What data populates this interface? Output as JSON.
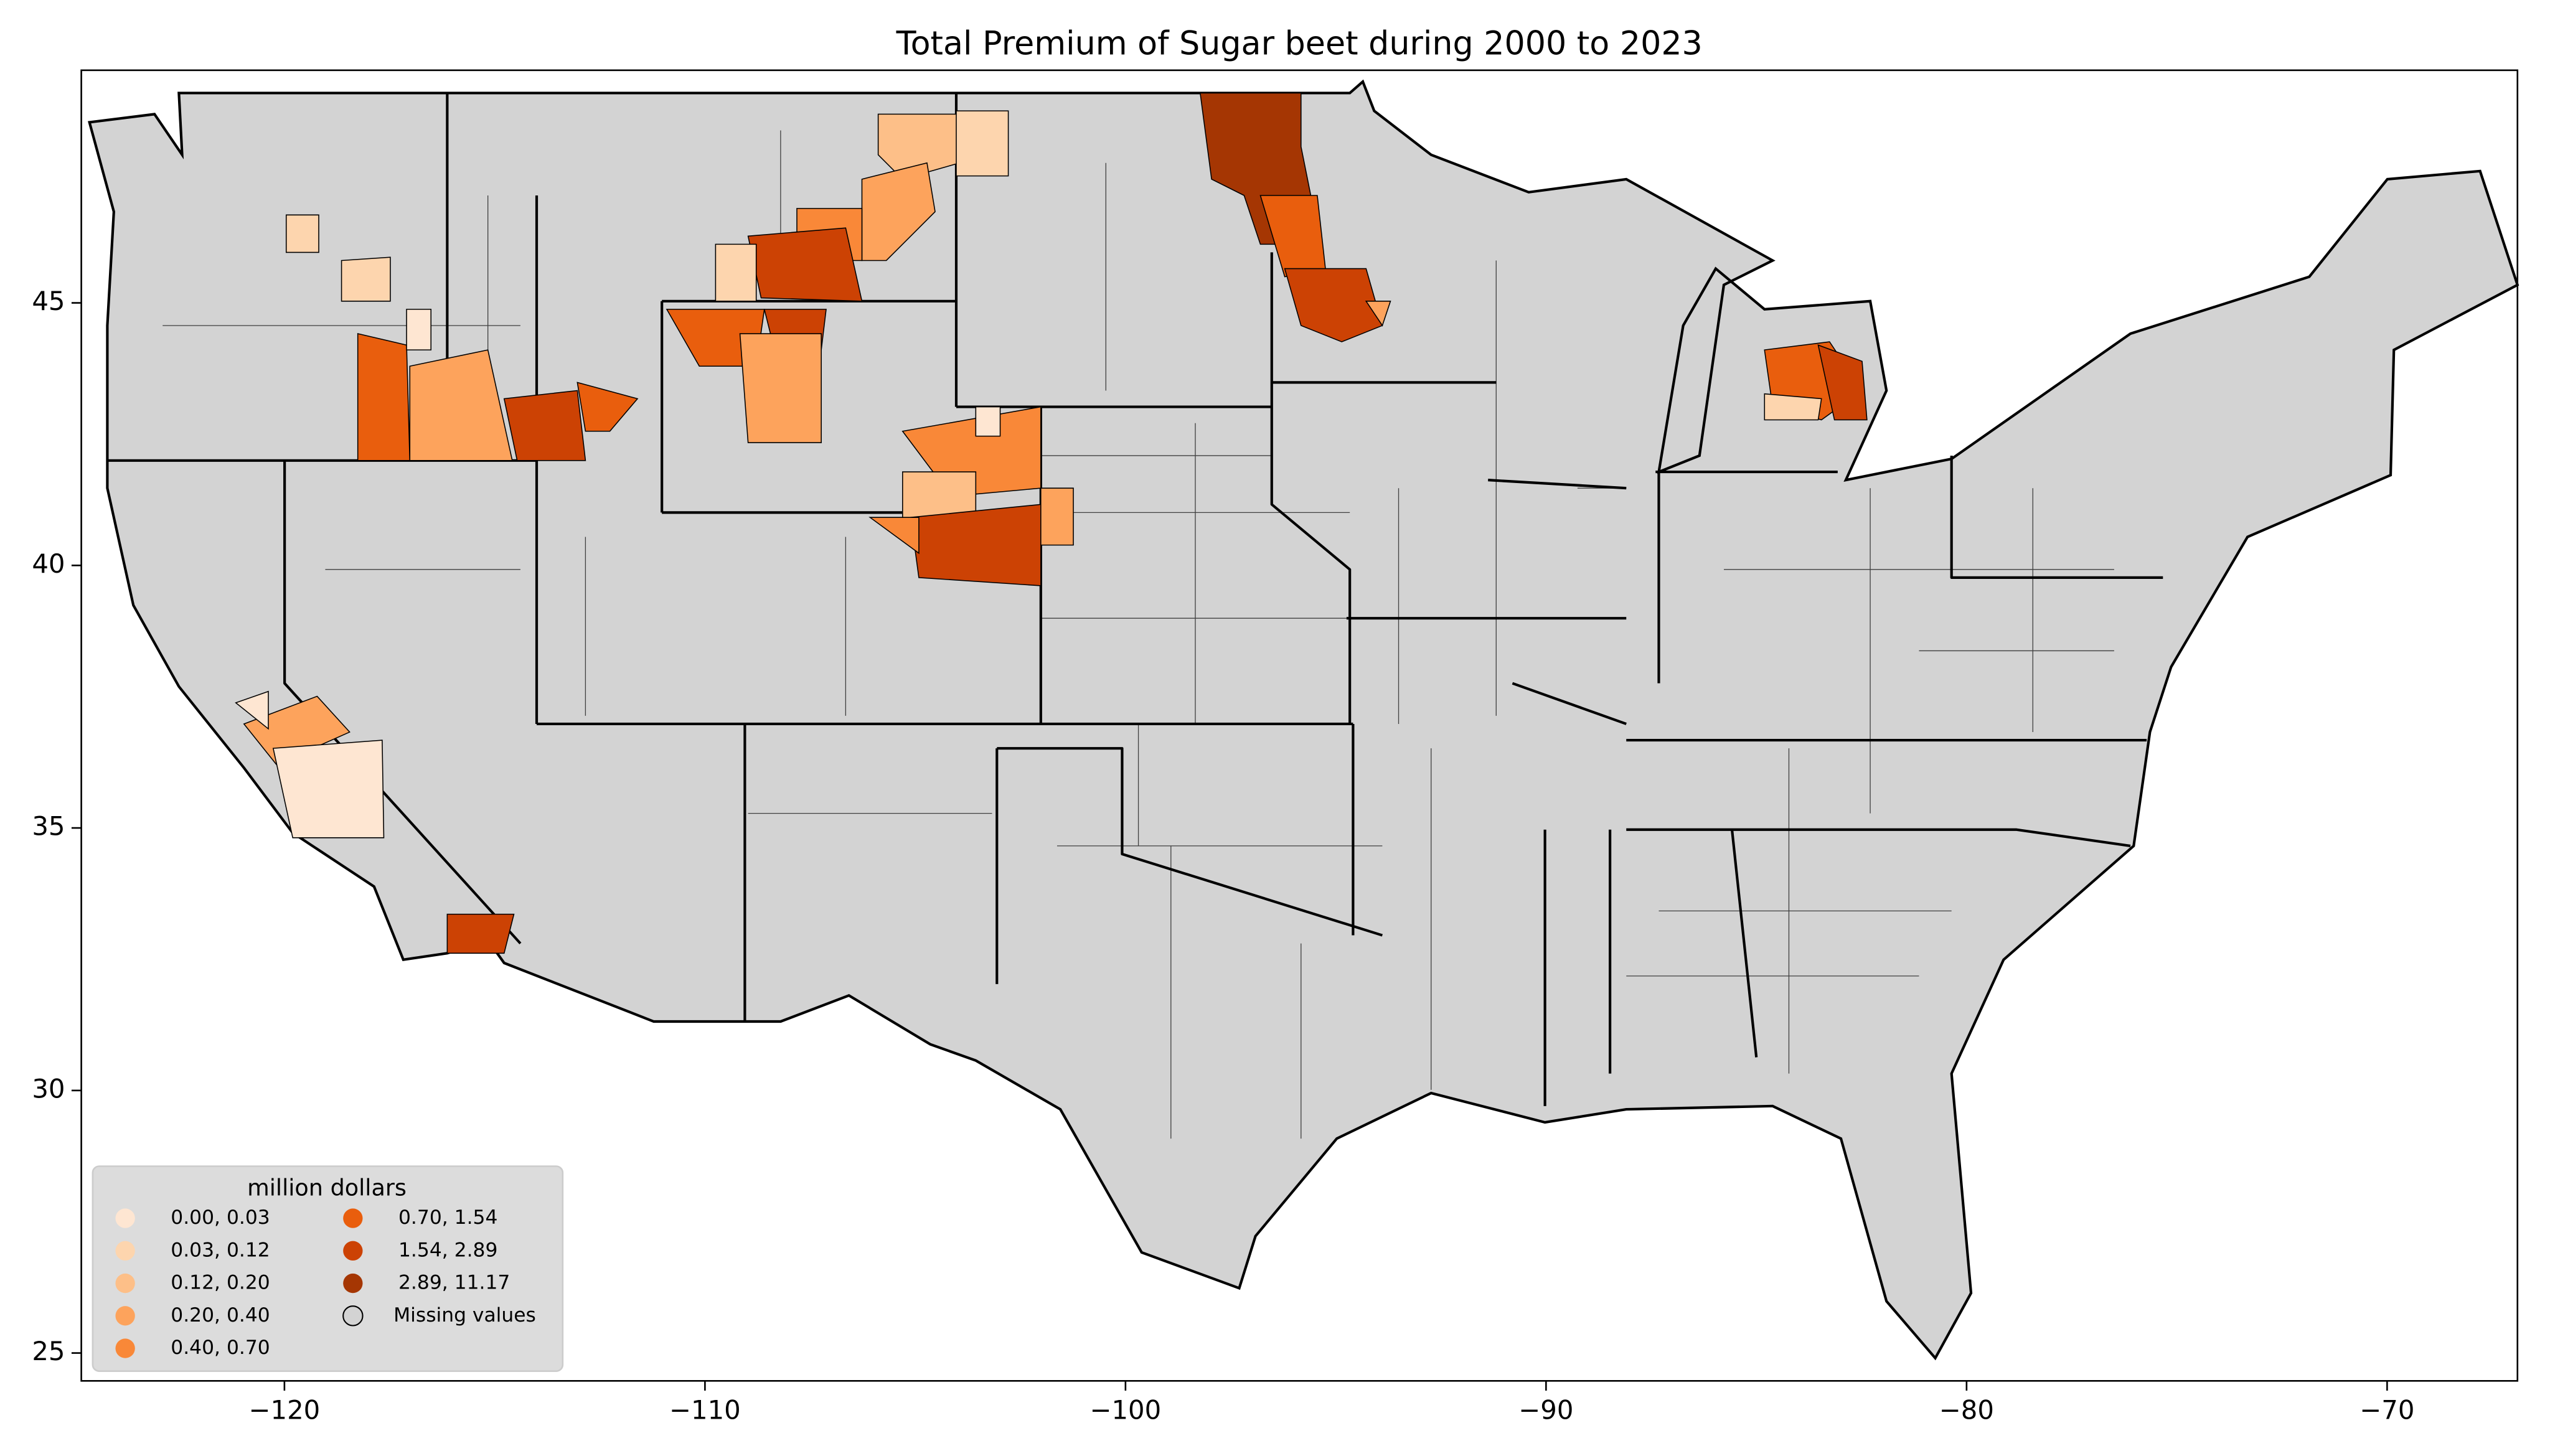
{
  "chart_data": {
    "type": "choropleth",
    "title": "Total  Premium of Sugar beet during 2000 to 2023",
    "xlim": [
      -124.83,
      -66.9
    ],
    "ylim": [
      24.47,
      49.43
    ],
    "xticks": [
      {
        "value": -120,
        "label": "−120"
      },
      {
        "value": -110,
        "label": "−110"
      },
      {
        "value": -100,
        "label": "−100"
      },
      {
        "value": -90,
        "label": "−90"
      },
      {
        "value": -80,
        "label": "−80"
      },
      {
        "value": -70,
        "label": "−70"
      }
    ],
    "yticks": [
      25,
      30,
      35,
      40,
      45
    ],
    "base_color": "#d3d3d3",
    "legend": {
      "title": "million dollars",
      "position": "lower left",
      "entries": [
        {
          "label": "0.00,  0.03",
          "color": "#fee6d2"
        },
        {
          "label": "0.03,  0.12",
          "color": "#fdd5ae"
        },
        {
          "label": "0.12,  0.20",
          "color": "#fdbf88"
        },
        {
          "label": "0.20,  0.40",
          "color": "#fda35c"
        },
        {
          "label": "0.40,  0.70",
          "color": "#f98838"
        },
        {
          "label": "0.70,  1.54",
          "color": "#e95e0d"
        },
        {
          "label": "1.54,  2.89",
          "color": "#cc4204"
        },
        {
          "label": "2.89, 11.17",
          "color": "#a53603"
        },
        {
          "label": "Missing values",
          "color": "#d3d3d3"
        }
      ]
    }
  }
}
